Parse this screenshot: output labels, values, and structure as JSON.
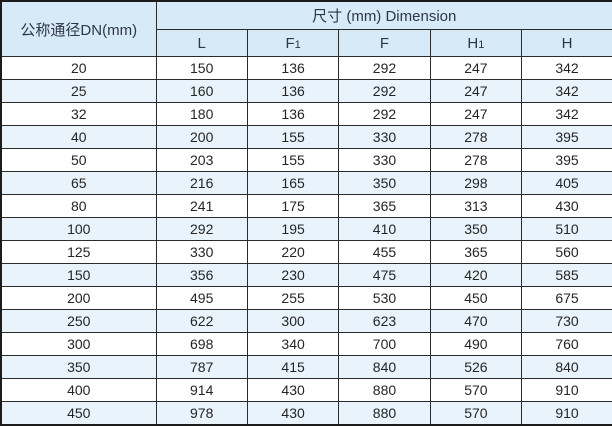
{
  "table": {
    "dn_header": "公称通径DN(mm)",
    "dimension_header": "尺寸 (mm) Dimension",
    "columns": [
      {
        "base": "L",
        "sub": ""
      },
      {
        "base": "F",
        "sub": "1"
      },
      {
        "base": "F",
        "sub": ""
      },
      {
        "base": "H",
        "sub": "1"
      },
      {
        "base": "H",
        "sub": ""
      }
    ],
    "rows": [
      {
        "dn": "20",
        "values": [
          "150",
          "136",
          "292",
          "247",
          "342"
        ]
      },
      {
        "dn": "25",
        "values": [
          "160",
          "136",
          "292",
          "247",
          "342"
        ]
      },
      {
        "dn": "32",
        "values": [
          "180",
          "136",
          "292",
          "247",
          "342"
        ]
      },
      {
        "dn": "40",
        "values": [
          "200",
          "155",
          "330",
          "278",
          "395"
        ]
      },
      {
        "dn": "50",
        "values": [
          "203",
          "155",
          "330",
          "278",
          "395"
        ]
      },
      {
        "dn": "65",
        "values": [
          "216",
          "165",
          "350",
          "298",
          "405"
        ]
      },
      {
        "dn": "80",
        "values": [
          "241",
          "175",
          "365",
          "313",
          "430"
        ]
      },
      {
        "dn": "100",
        "values": [
          "292",
          "195",
          "410",
          "350",
          "510"
        ]
      },
      {
        "dn": "125",
        "values": [
          "330",
          "220",
          "455",
          "365",
          "560"
        ]
      },
      {
        "dn": "150",
        "values": [
          "356",
          "230",
          "475",
          "420",
          "585"
        ]
      },
      {
        "dn": "200",
        "values": [
          "495",
          "255",
          "530",
          "450",
          "675"
        ]
      },
      {
        "dn": "250",
        "values": [
          "622",
          "300",
          "623",
          "470",
          "730"
        ]
      },
      {
        "dn": "300",
        "values": [
          "698",
          "340",
          "700",
          "490",
          "760"
        ]
      },
      {
        "dn": "350",
        "values": [
          "787",
          "415",
          "840",
          "526",
          "840"
        ]
      },
      {
        "dn": "400",
        "values": [
          "914",
          "430",
          "880",
          "570",
          "910"
        ]
      },
      {
        "dn": "450",
        "values": [
          "978",
          "430",
          "880",
          "570",
          "910"
        ]
      }
    ]
  },
  "colors": {
    "header_bg": "#d7eaf7",
    "alt_row_bg": "#e8f3fb",
    "border": "#2b2b2b",
    "outer_border": "#1c1c1c"
  }
}
